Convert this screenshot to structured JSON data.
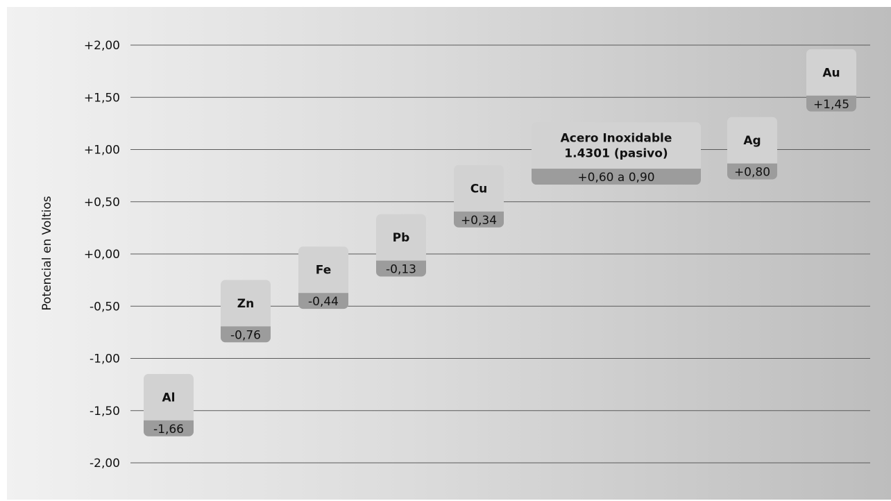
{
  "chart_data": {
    "type": "bar",
    "ylabel": "Potencial en Voltios",
    "ylim": [
      -2.0,
      2.0
    ],
    "yticks": [
      {
        "value": 2.0,
        "label": "+2,00"
      },
      {
        "value": 1.5,
        "label": "+1,50"
      },
      {
        "value": 1.0,
        "label": "+1,00"
      },
      {
        "value": 0.5,
        "label": "+0,50"
      },
      {
        "value": 0.0,
        "label": "+0,00"
      },
      {
        "value": -0.5,
        "label": "-0,50"
      },
      {
        "value": -1.0,
        "label": "-1,00"
      },
      {
        "value": -1.5,
        "label": "-1,50"
      },
      {
        "value": -2.0,
        "label": "-2,00"
      }
    ],
    "grid": true,
    "items": [
      {
        "name": "Al",
        "value": -1.66,
        "value_label": "-1,66"
      },
      {
        "name": "Zn",
        "value": -0.76,
        "value_label": "-0,76"
      },
      {
        "name": "Fe",
        "value": -0.44,
        "value_label": "-0,44"
      },
      {
        "name": "Pb",
        "value": -0.13,
        "value_label": "-0,13"
      },
      {
        "name": "Cu",
        "value": 0.34,
        "value_label": "+0,34"
      },
      {
        "name": "Acero Inoxidable\n1.4301 (pasivo)",
        "value": 0.75,
        "value_label": "+0,60 a 0,90"
      },
      {
        "name": "Ag",
        "value": 0.8,
        "value_label": "+0,80"
      },
      {
        "name": "Au",
        "value": 1.45,
        "value_label": "+1,45"
      }
    ],
    "colors": {
      "block_top": "#d2d2d2",
      "block_bottom": "#9c9c9c",
      "gridline": "#5a5a5a"
    }
  }
}
